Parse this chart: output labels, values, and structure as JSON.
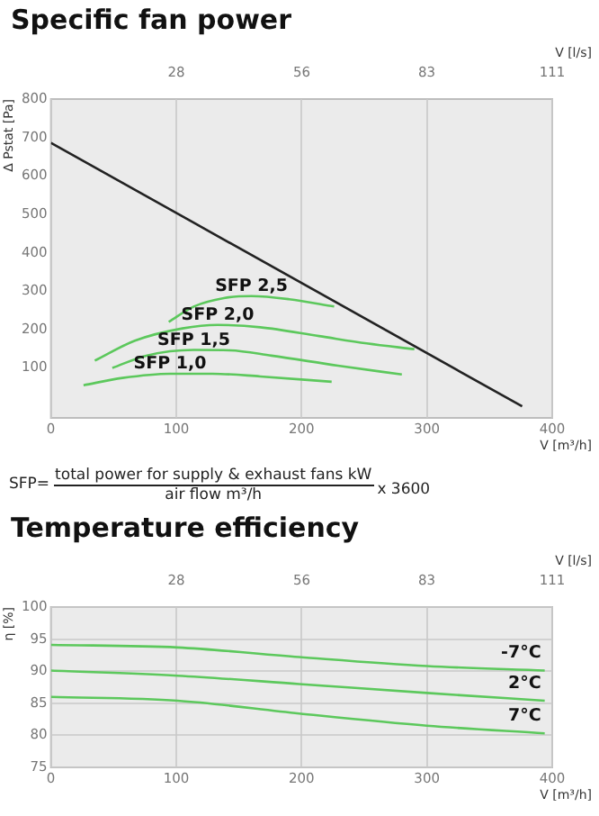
{
  "chart_data": [
    {
      "type": "line",
      "title": "Specific fan power",
      "xlabel": "V [m³/h]",
      "x2label": "V [l/s]",
      "ylabel": "Δ Pstat [Pa]",
      "xlim": [
        0,
        400
      ],
      "xticks": [
        0,
        100,
        200,
        300,
        400
      ],
      "x2lim": [
        0,
        111.1
      ],
      "x2ticks": [
        {
          "value": 27.8,
          "label": "28"
        },
        {
          "value": 55.6,
          "label": "56"
        },
        {
          "value": 83.3,
          "label": "83"
        },
        {
          "value": 111.1,
          "label": "111"
        }
      ],
      "ylim": [
        -30,
        800
      ],
      "yticks": [
        100,
        200,
        300,
        400,
        500,
        600,
        700,
        800
      ],
      "grid": "x",
      "marker": "none",
      "line_style": "solid",
      "series": [
        {
          "color": "#222222",
          "x": [
            0,
            376
          ],
          "values": [
            686,
            0
          ]
        },
        {
          "name": "SFP 2,5",
          "color": "#5cc85c",
          "x": [
            94,
            114,
            138,
            160,
            190,
            226
          ],
          "values": [
            220,
            260,
            282,
            287,
            279,
            260
          ]
        },
        {
          "name": "SFP 2,0",
          "color": "#5cc85c",
          "x": [
            35,
            67,
            105,
            133,
            167,
            214,
            252,
            290
          ],
          "values": [
            119,
            171,
            203,
            212,
            206,
            183,
            164,
            149
          ]
        },
        {
          "name": "SFP 1,5",
          "color": "#5cc85c",
          "x": [
            49,
            76,
            114,
            143,
            176,
            229,
            280
          ],
          "values": [
            100,
            132,
            147,
            146,
            132,
            106,
            83
          ]
        },
        {
          "name": "SFP 1,0",
          "color": "#5cc85c",
          "x": [
            26,
            57,
            95,
            129,
            167,
            224
          ],
          "values": [
            55,
            74,
            85,
            85,
            78,
            64
          ]
        }
      ],
      "annotations": [
        "SFP=",
        "total power for supply & exhaust fans kW",
        "air flow m³/h",
        "x 3600"
      ]
    },
    {
      "type": "line",
      "title": "Temperature efficiency",
      "xlabel": "V [m³/h]",
      "x2label": "V [l/s]",
      "ylabel": "η [%]",
      "xlim": [
        0,
        400
      ],
      "xticks": [
        0,
        100,
        200,
        300,
        400
      ],
      "x2lim": [
        0,
        111.1
      ],
      "x2ticks": [
        {
          "value": 27.8,
          "label": "28"
        },
        {
          "value": 55.6,
          "label": "56"
        },
        {
          "value": 83.3,
          "label": "83"
        },
        {
          "value": 111.1,
          "label": "111"
        }
      ],
      "ylim": [
        75,
        100
      ],
      "yticks": [
        75,
        80,
        85,
        90,
        95,
        100
      ],
      "grid": true,
      "marker": "none",
      "line_style": "solid",
      "series": [
        {
          "name": "-7°C",
          "color": "#5cc85c",
          "x": [
            0,
            101,
            198,
            300,
            394
          ],
          "values": [
            94.1,
            93.7,
            92.2,
            90.8,
            90.1
          ]
        },
        {
          "name": "2°C",
          "color": "#5cc85c",
          "x": [
            0,
            101,
            198,
            300,
            394
          ],
          "values": [
            90.1,
            89.3,
            88.0,
            86.6,
            85.4
          ]
        },
        {
          "name": "7°C",
          "color": "#5cc85c",
          "x": [
            0,
            101,
            198,
            300,
            394
          ],
          "values": [
            86.0,
            85.4,
            83.4,
            81.5,
            80.3
          ]
        }
      ]
    }
  ]
}
